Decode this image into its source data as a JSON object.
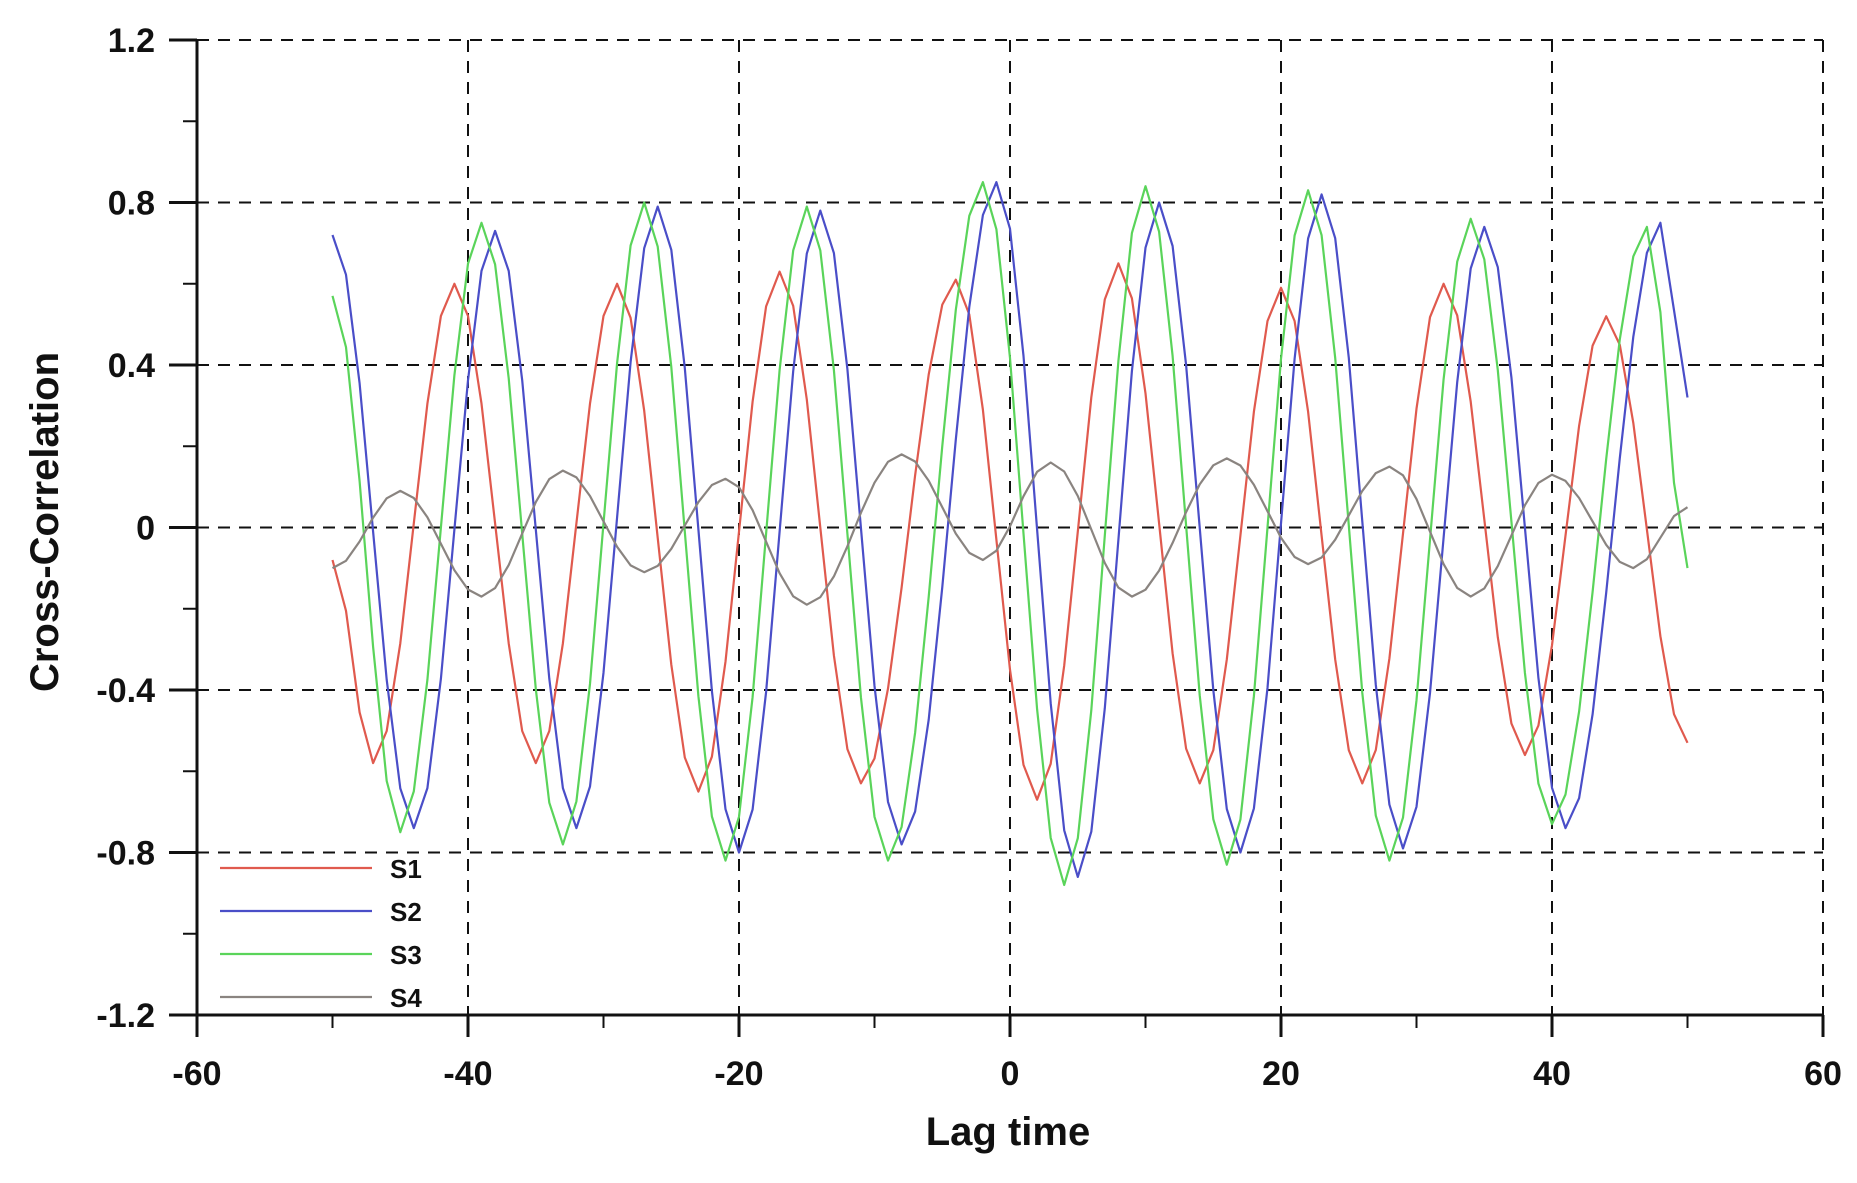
{
  "chart_data": {
    "type": "line",
    "title": "",
    "xlabel": "Lag time",
    "ylabel": "Cross-Correlation",
    "xlim": [
      -60,
      60
    ],
    "ylim": [
      -1.2,
      1.2
    ],
    "xticks": [
      -60,
      -40,
      -20,
      0,
      20,
      40,
      60
    ],
    "yticks": [
      -1.2,
      -0.8,
      -0.4,
      0,
      0.4,
      0.8,
      1.2
    ],
    "xtick_labels": [
      "-60",
      "-40",
      "-20",
      "0",
      "20",
      "40",
      "60"
    ],
    "ytick_labels": [
      "-1.2",
      "-0.8",
      "-0.4",
      "0",
      "0.4",
      "0.8",
      "1.2"
    ],
    "grid": true,
    "legend_position": "bottom-left",
    "x_start": -50,
    "x_end": 50,
    "x_step": 1,
    "series": [
      {
        "name": "S1",
        "color": "#e05a4e",
        "extrema": [
          [
            -50,
            -0.08
          ],
          [
            -47,
            -0.58
          ],
          [
            -41,
            0.6
          ],
          [
            -35,
            -0.58
          ],
          [
            -29,
            0.6
          ],
          [
            -23,
            -0.65
          ],
          [
            -17,
            0.63
          ],
          [
            -11,
            -0.63
          ],
          [
            -4,
            0.61
          ],
          [
            2,
            -0.67
          ],
          [
            8,
            0.65
          ],
          [
            14,
            -0.63
          ],
          [
            20,
            0.59
          ],
          [
            26,
            -0.63
          ],
          [
            32,
            0.6
          ],
          [
            38,
            -0.56
          ],
          [
            44,
            0.52
          ],
          [
            50,
            -0.53
          ]
        ]
      },
      {
        "name": "S2",
        "color": "#4a4ec8",
        "extrema": [
          [
            -50,
            0.72
          ],
          [
            -44,
            -0.74
          ],
          [
            -38,
            0.73
          ],
          [
            -32,
            -0.74
          ],
          [
            -26,
            0.79
          ],
          [
            -20,
            -0.8
          ],
          [
            -14,
            0.78
          ],
          [
            -8,
            -0.78
          ],
          [
            -1,
            0.85
          ],
          [
            5,
            -0.86
          ],
          [
            11,
            0.8
          ],
          [
            17,
            -0.8
          ],
          [
            23,
            0.82
          ],
          [
            29,
            -0.79
          ],
          [
            35,
            0.74
          ],
          [
            41,
            -0.74
          ],
          [
            48,
            0.75
          ],
          [
            50,
            0.32
          ]
        ]
      },
      {
        "name": "S3",
        "color": "#5ad45a",
        "extrema": [
          [
            -50,
            0.57
          ],
          [
            -45,
            -0.75
          ],
          [
            -39,
            0.75
          ],
          [
            -33,
            -0.78
          ],
          [
            -27,
            0.8
          ],
          [
            -21,
            -0.82
          ],
          [
            -15,
            0.79
          ],
          [
            -9,
            -0.82
          ],
          [
            -2,
            0.85
          ],
          [
            4,
            -0.88
          ],
          [
            10,
            0.84
          ],
          [
            16,
            -0.83
          ],
          [
            22,
            0.83
          ],
          [
            28,
            -0.82
          ],
          [
            34,
            0.76
          ],
          [
            40,
            -0.73
          ],
          [
            47,
            0.74
          ],
          [
            50,
            -0.1
          ]
        ]
      },
      {
        "name": "S4",
        "color": "#8a8480",
        "extrema": [
          [
            -50,
            -0.1
          ],
          [
            -45,
            0.09
          ],
          [
            -39,
            -0.17
          ],
          [
            -33,
            0.14
          ],
          [
            -27,
            -0.11
          ],
          [
            -21,
            0.12
          ],
          [
            -15,
            -0.19
          ],
          [
            -8,
            0.18
          ],
          [
            -2,
            -0.08
          ],
          [
            3,
            0.16
          ],
          [
            9,
            -0.17
          ],
          [
            16,
            0.17
          ],
          [
            22,
            -0.09
          ],
          [
            28,
            0.15
          ],
          [
            34,
            -0.17
          ],
          [
            40,
            0.13
          ],
          [
            46,
            -0.1
          ],
          [
            50,
            0.05
          ]
        ]
      }
    ]
  }
}
